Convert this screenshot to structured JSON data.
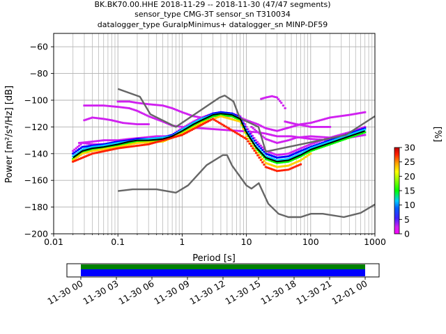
{
  "title_lines": [
    "BK.BK70.00.HHE   2018-11-29 -- 2018-11-30  (47/47 segments)",
    "sensor_type CMG-3T sensor_sn T310034",
    "datalogger_type GuralpMinimus+ datalogger_sn MINP-DF59"
  ],
  "colorbar": {
    "label": "[%]",
    "ticks": [
      "0",
      "5",
      "10",
      "15",
      "20",
      "25",
      "30"
    ],
    "range": [
      0,
      30
    ]
  },
  "timeline": {
    "ticks": [
      "11-30 00",
      "11-30 03",
      "11-30 06",
      "11-30 09",
      "11-30 12",
      "11-30 15",
      "11-30 18",
      "11-30 21",
      "12-01 00"
    ],
    "colors": {
      "coverage": "#0000ff",
      "gaps": "#008000"
    }
  },
  "chart_data": {
    "type": "heatmap",
    "subtype": "probabilistic power spectral density",
    "xlabel": "Period [s]",
    "ylabel": "Power [m²/s⁴/Hz] [dB]",
    "xscale": "log",
    "xlim": [
      0.01,
      1000
    ],
    "ylim": [
      -200,
      -50
    ],
    "xtick_labels": [
      "0.01",
      "0.1",
      "1",
      "10",
      "100",
      "1000"
    ],
    "ytick_labels": [
      "-200",
      "-180",
      "-160",
      "-140",
      "-120",
      "-100",
      "-80",
      "-60"
    ],
    "grid": true,
    "series": [
      {
        "role": "mode",
        "color": "#000000",
        "points": [
          [
            0.02,
            -143
          ],
          [
            0.028,
            -138
          ],
          [
            0.04,
            -136
          ],
          [
            0.06,
            -135
          ],
          [
            0.1,
            -133
          ],
          [
            0.15,
            -131
          ],
          [
            0.2,
            -130
          ],
          [
            0.3,
            -130
          ],
          [
            0.5,
            -129
          ],
          [
            0.7,
            -127
          ],
          [
            1,
            -123
          ],
          [
            1.5,
            -118
          ],
          [
            2,
            -115
          ],
          [
            3,
            -111
          ],
          [
            4,
            -110
          ],
          [
            6,
            -111
          ],
          [
            8,
            -114
          ],
          [
            10,
            -124
          ],
          [
            14,
            -135
          ],
          [
            20,
            -143
          ],
          [
            30,
            -146
          ],
          [
            45,
            -145
          ],
          [
            70,
            -141
          ],
          [
            100,
            -137
          ],
          [
            200,
            -132
          ],
          [
            400,
            -127
          ],
          [
            700,
            -123
          ]
        ]
      },
      {
        "role": "NLNM",
        "color": "#666666",
        "points": [
          [
            0.1,
            -168
          ],
          [
            0.17,
            -166.7
          ],
          [
            0.4,
            -166.7
          ],
          [
            0.8,
            -169.2
          ],
          [
            1.24,
            -163.7
          ],
          [
            2.4,
            -148.6
          ],
          [
            4.3,
            -141.1
          ],
          [
            5,
            -141.1
          ],
          [
            6,
            -149
          ],
          [
            10,
            -163.8
          ],
          [
            12,
            -166.2
          ],
          [
            15.6,
            -162.1
          ],
          [
            21.9,
            -177.5
          ],
          [
            31.6,
            -185
          ],
          [
            45,
            -187.5
          ],
          [
            70,
            -187.5
          ],
          [
            101,
            -185
          ],
          [
            154,
            -185
          ],
          [
            328,
            -187.5
          ],
          [
            600,
            -184.4
          ],
          [
            1000,
            -178
          ]
        ]
      },
      {
        "role": "NHNM",
        "color": "#666666",
        "points": [
          [
            0.1,
            -91.5
          ],
          [
            0.22,
            -97.4
          ],
          [
            0.32,
            -110.5
          ],
          [
            0.8,
            -120
          ],
          [
            3.8,
            -98
          ],
          [
            4.6,
            -96.5
          ],
          [
            6.3,
            -101
          ],
          [
            7.9,
            -113.5
          ],
          [
            15.4,
            -120
          ],
          [
            20,
            -138.5
          ],
          [
            354.8,
            -126
          ],
          [
            1000,
            -112
          ]
        ]
      }
    ],
    "scatter_groups": [
      {
        "percent": 5,
        "color": "#d020f0",
        "points": [
          [
            0.1,
            -101
          ],
          [
            0.15,
            -101
          ],
          [
            0.2,
            -102
          ],
          [
            0.3,
            -103
          ],
          [
            0.5,
            -104
          ],
          [
            0.7,
            -106
          ],
          [
            1,
            -109
          ],
          [
            1.5,
            -112
          ],
          [
            2,
            -113
          ],
          [
            3,
            -112
          ],
          [
            4,
            -112
          ],
          [
            6,
            -112
          ],
          [
            8,
            -113
          ],
          [
            10,
            -115
          ],
          [
            15,
            -118
          ],
          [
            20,
            -121
          ],
          [
            30,
            -123
          ],
          [
            50,
            -120
          ],
          [
            70,
            -118
          ],
          [
            100,
            -117
          ],
          [
            200,
            -113
          ],
          [
            400,
            -111
          ],
          [
            700,
            -109
          ]
        ]
      },
      {
        "percent": 5,
        "color": "#d020f0",
        "points": [
          [
            0.03,
            -104
          ],
          [
            0.06,
            -104
          ],
          [
            0.1,
            -105
          ],
          [
            0.15,
            -106
          ],
          [
            0.2,
            -108
          ],
          [
            0.3,
            -112
          ],
          [
            0.5,
            -116
          ],
          [
            0.7,
            -119
          ],
          [
            1,
            -120
          ],
          [
            15,
            -124
          ],
          [
            20,
            -125
          ],
          [
            30,
            -127
          ],
          [
            50,
            -127
          ],
          [
            70,
            -128
          ],
          [
            100,
            -129
          ],
          [
            200,
            -130
          ],
          [
            400,
            -128
          ],
          [
            700,
            -126
          ]
        ]
      },
      {
        "percent": 5,
        "color": "#d020f0",
        "points": [
          [
            17,
            -99
          ],
          [
            20,
            -98
          ],
          [
            25,
            -97
          ],
          [
            30,
            -98
          ],
          [
            35,
            -102
          ],
          [
            40,
            -106
          ]
        ]
      },
      {
        "percent": 6,
        "color": "#d020f0",
        "points": [
          [
            0.03,
            -115
          ],
          [
            0.04,
            -113
          ],
          [
            0.06,
            -114
          ],
          [
            0.08,
            -115
          ],
          [
            0.12,
            -117
          ],
          [
            0.2,
            -118
          ],
          [
            0.3,
            -118
          ]
        ]
      },
      {
        "percent": 6,
        "color": "#d020f0",
        "points": [
          [
            0.025,
            -132
          ],
          [
            0.04,
            -131
          ],
          [
            0.06,
            -130
          ],
          [
            0.1,
            -130
          ],
          [
            0.15,
            -129
          ],
          [
            0.25,
            -128
          ],
          [
            0.4,
            -127
          ],
          [
            0.6,
            -127
          ]
        ]
      },
      {
        "percent": 6,
        "color": "#d020f0",
        "points": [
          [
            40,
            -116
          ],
          [
            60,
            -118
          ],
          [
            80,
            -119
          ],
          [
            100,
            -120
          ],
          [
            150,
            -120
          ],
          [
            200,
            -120
          ]
        ]
      },
      {
        "percent": 6,
        "color": "#d020f0",
        "points": [
          [
            12,
            -120
          ],
          [
            20,
            -129
          ],
          [
            30,
            -132
          ],
          [
            45,
            -130
          ],
          [
            60,
            -128
          ],
          [
            100,
            -127
          ],
          [
            200,
            -128
          ],
          [
            400,
            -127
          ],
          [
            700,
            -124
          ]
        ]
      },
      {
        "percent": 6,
        "color": "#d020f0",
        "points": [
          [
            0.02,
            -138
          ],
          [
            0.028,
            -132
          ],
          [
            0.04,
            -133
          ],
          [
            0.06,
            -133
          ],
          [
            0.1,
            -132
          ],
          [
            0.15,
            -130
          ],
          [
            0.2,
            -129
          ],
          [
            0.3,
            -129
          ],
          [
            0.5,
            -128
          ],
          [
            0.7,
            -126
          ],
          [
            1,
            -121
          ],
          [
            1.5,
            -116
          ],
          [
            2,
            -113
          ],
          [
            3,
            -110
          ],
          [
            4,
            -109
          ],
          [
            6,
            -110
          ],
          [
            8,
            -112
          ],
          [
            10,
            -120
          ],
          [
            14,
            -130
          ],
          [
            20,
            -138
          ],
          [
            30,
            -141
          ],
          [
            45,
            -140
          ],
          [
            70,
            -136
          ],
          [
            100,
            -133
          ],
          [
            200,
            -128
          ],
          [
            400,
            -124
          ],
          [
            700,
            -120
          ]
        ]
      },
      {
        "percent": 10,
        "color": "#0000ff",
        "points": [
          [
            0.02,
            -140
          ],
          [
            0.028,
            -135
          ],
          [
            0.04,
            -134
          ],
          [
            0.06,
            -133
          ],
          [
            0.1,
            -131
          ],
          [
            0.15,
            -130
          ],
          [
            0.2,
            -129
          ],
          [
            0.3,
            -129
          ],
          [
            0.5,
            -128
          ],
          [
            0.7,
            -126
          ],
          [
            1,
            -122
          ],
          [
            1.5,
            -117
          ],
          [
            2,
            -114
          ],
          [
            3,
            -110
          ],
          [
            4,
            -109
          ],
          [
            6,
            -110
          ],
          [
            8,
            -113
          ],
          [
            10,
            -122
          ],
          [
            14,
            -132
          ],
          [
            20,
            -140
          ],
          [
            30,
            -143
          ],
          [
            45,
            -142
          ],
          [
            70,
            -138
          ],
          [
            100,
            -135
          ],
          [
            200,
            -130
          ],
          [
            400,
            -125
          ],
          [
            700,
            -121
          ]
        ]
      },
      {
        "percent": 12,
        "color": "#00ccff",
        "points": [
          [
            0.02,
            -142
          ],
          [
            0.028,
            -137
          ],
          [
            0.04,
            -135
          ],
          [
            0.06,
            -134
          ],
          [
            0.1,
            -132
          ],
          [
            0.15,
            -131
          ],
          [
            0.2,
            -130
          ],
          [
            0.3,
            -129
          ],
          [
            0.5,
            -128
          ],
          [
            0.7,
            -127
          ],
          [
            1,
            -122
          ],
          [
            1.5,
            -117
          ],
          [
            2,
            -114
          ],
          [
            3,
            -111
          ],
          [
            4,
            -110
          ],
          [
            6,
            -111
          ],
          [
            8,
            -114
          ],
          [
            10,
            -123
          ],
          [
            14,
            -134
          ],
          [
            20,
            -142
          ],
          [
            30,
            -145
          ],
          [
            45,
            -144
          ],
          [
            70,
            -140
          ],
          [
            100,
            -136
          ],
          [
            200,
            -131
          ],
          [
            400,
            -126
          ],
          [
            700,
            -122
          ]
        ]
      },
      {
        "percent": 18,
        "color": "#00ff00",
        "points": [
          [
            0.02,
            -144
          ],
          [
            0.028,
            -139
          ],
          [
            0.04,
            -137
          ],
          [
            0.06,
            -136
          ],
          [
            0.1,
            -134
          ],
          [
            0.15,
            -132
          ],
          [
            0.2,
            -131
          ],
          [
            0.3,
            -131
          ],
          [
            0.5,
            -130
          ],
          [
            0.7,
            -128
          ],
          [
            1,
            -124
          ],
          [
            1.5,
            -119
          ],
          [
            2,
            -116
          ],
          [
            3,
            -112
          ],
          [
            4,
            -111
          ],
          [
            6,
            -112
          ],
          [
            8,
            -115
          ],
          [
            10,
            -125
          ],
          [
            14,
            -136
          ],
          [
            20,
            -144
          ],
          [
            30,
            -147
          ],
          [
            45,
            -146
          ],
          [
            70,
            -142
          ],
          [
            100,
            -138
          ],
          [
            200,
            -133
          ],
          [
            400,
            -128
          ],
          [
            700,
            -124
          ]
        ]
      },
      {
        "percent": 25,
        "color": "#ffd000",
        "points": [
          [
            0.02,
            -145
          ],
          [
            0.028,
            -140
          ],
          [
            0.04,
            -138
          ],
          [
            0.1,
            -135
          ],
          [
            0.2,
            -132
          ],
          [
            0.5,
            -131
          ],
          [
            1,
            -125
          ],
          [
            2,
            -117
          ],
          [
            4,
            -112
          ],
          [
            8,
            -116
          ],
          [
            10,
            -127
          ],
          [
            14,
            -138
          ],
          [
            20,
            -147
          ],
          [
            30,
            -150
          ],
          [
            45,
            -149
          ],
          [
            70,
            -145
          ],
          [
            100,
            -140
          ]
        ]
      },
      {
        "percent": 30,
        "color": "#ff2000",
        "points": [
          [
            0.02,
            -146
          ],
          [
            0.04,
            -140
          ],
          [
            0.1,
            -136
          ],
          [
            0.3,
            -133
          ],
          [
            1,
            -126
          ],
          [
            3,
            -114
          ],
          [
            10,
            -129
          ],
          [
            20,
            -150
          ],
          [
            30,
            -153
          ],
          [
            45,
            -152
          ],
          [
            70,
            -148
          ]
        ]
      }
    ]
  }
}
